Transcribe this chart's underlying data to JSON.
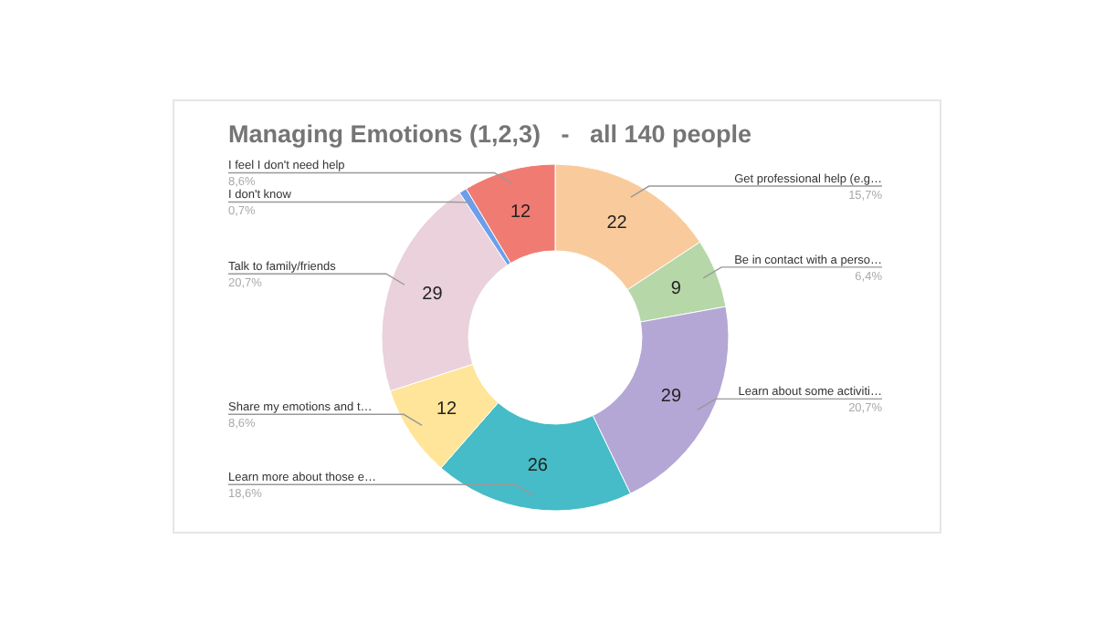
{
  "chart_data": {
    "type": "donut",
    "title": "Managing Emotions (1,2,3)   -   all 140 people",
    "categories": [
      "Get professional help (e.g…",
      "Be in contact with a perso…",
      "Learn about some activiti…",
      "Learn more about those e…",
      "Share my emotions and t…",
      "Talk to family/friends",
      "I don't know",
      "I feel I don't need help"
    ],
    "values": [
      22,
      9,
      29,
      26,
      12,
      29,
      1,
      12
    ],
    "colors": [
      "#f9cb9c",
      "#b6d7a8",
      "#b4a7d6",
      "#45bcc7",
      "#ffe599",
      "#ead1dc",
      "#6d9eeb",
      "#f07b72"
    ],
    "value_labels": [
      "22",
      "9",
      "29",
      "26",
      "12",
      "29",
      null,
      "12"
    ],
    "annotations": [
      "15,7%",
      "6,4%",
      "20,7%",
      "18,6%",
      "8,6%",
      "20,7%",
      "0,7%",
      "8,6%"
    ]
  }
}
